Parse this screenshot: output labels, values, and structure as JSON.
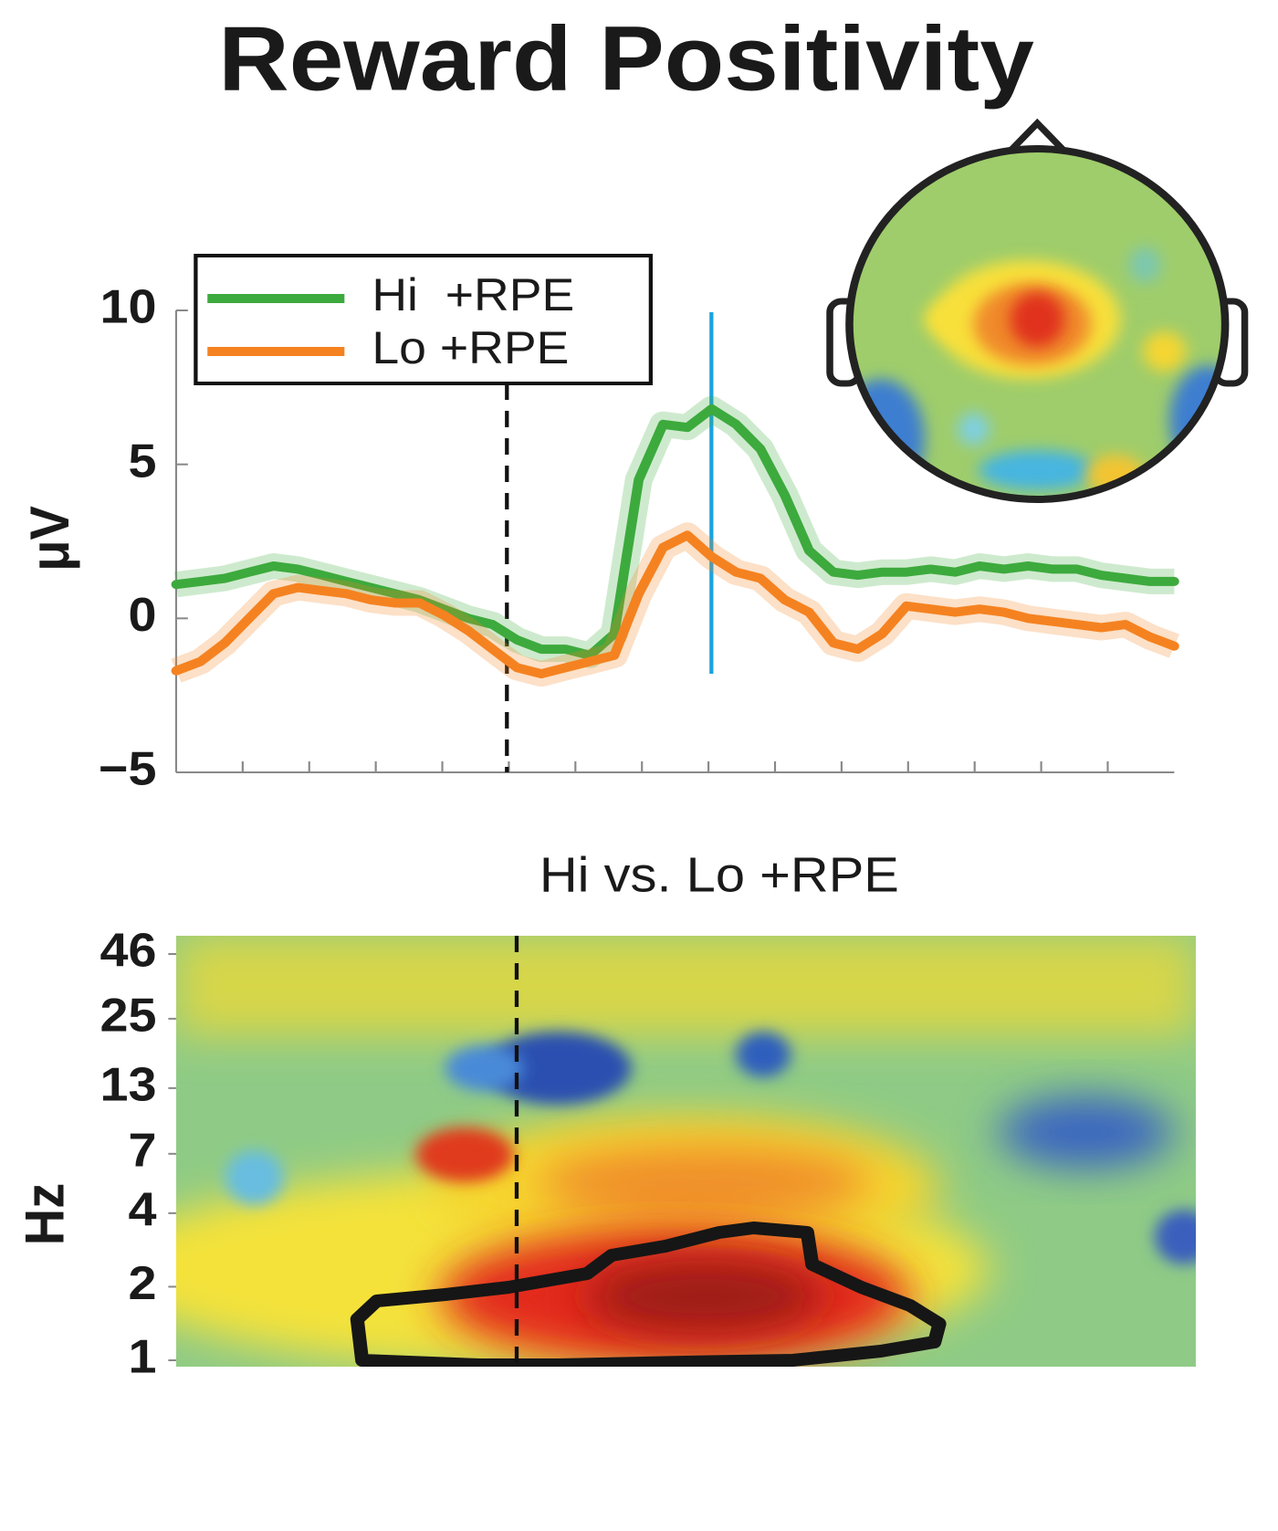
{
  "title": "Reward Positivity",
  "chart_data": [
    {
      "type": "line",
      "ylabel": "μV",
      "ylim": [
        -5,
        10
      ],
      "yticks": [
        {
          "value": -5,
          "label": "−5"
        },
        0,
        5,
        10
      ],
      "grid": false,
      "legend": "upper left",
      "series": [
        {
          "name": "Hi  +RPE",
          "color": "#3daa3d",
          "values": [
            1.1,
            1.2,
            1.3,
            1.5,
            1.7,
            1.6,
            1.4,
            1.2,
            1.0,
            0.8,
            0.6,
            0.3,
            0.0,
            -0.2,
            -0.7,
            -1.0,
            -1.0,
            -1.2,
            -0.5,
            4.5,
            6.3,
            6.2,
            6.8,
            6.3,
            5.5,
            4.0,
            2.2,
            1.5,
            1.4,
            1.5,
            1.5,
            1.6,
            1.5,
            1.7,
            1.6,
            1.7,
            1.6,
            1.6,
            1.4,
            1.3,
            1.2,
            1.2
          ]
        },
        {
          "name": "Lo +RPE",
          "color": "#f58220",
          "values": [
            -1.7,
            -1.4,
            -0.8,
            0.0,
            0.8,
            1.0,
            0.9,
            0.8,
            0.6,
            0.5,
            0.5,
            0.1,
            -0.4,
            -1.0,
            -1.6,
            -1.8,
            -1.6,
            -1.4,
            -1.2,
            0.8,
            2.3,
            2.7,
            2.0,
            1.5,
            1.3,
            0.6,
            0.2,
            -0.8,
            -1.0,
            -0.5,
            0.4,
            0.3,
            0.2,
            0.3,
            0.2,
            0.0,
            -0.1,
            -0.2,
            -0.3,
            -0.2,
            -0.6,
            -0.9
          ]
        }
      ]
    },
    {
      "type": "heatmap",
      "title": "Hi vs. Lo +RPE",
      "ylabel": "Hz",
      "log_scale": true,
      "ylim": [
        1,
        46
      ],
      "yticks": [
        1,
        2,
        4,
        7,
        13,
        25,
        46
      ]
    }
  ]
}
